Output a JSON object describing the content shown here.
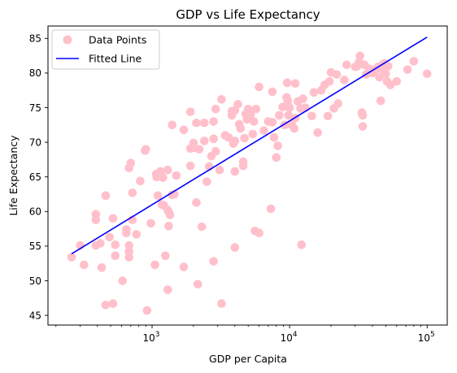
{
  "chart_data": {
    "type": "scatter",
    "title": "GDP vs Life Expectancy",
    "xlabel": "GDP per Capita",
    "ylabel": "Life Expectancy",
    "x_scale": "log",
    "xlim": [
      175,
      140000
    ],
    "ylim": [
      43.6,
      86.8
    ],
    "x_ticks": [
      {
        "value": 1000,
        "base": "10",
        "exp": "3"
      },
      {
        "value": 10000,
        "base": "10",
        "exp": "4"
      },
      {
        "value": 100000,
        "base": "10",
        "exp": "5"
      }
    ],
    "y_ticks": [
      45,
      50,
      55,
      60,
      65,
      70,
      75,
      80,
      85
    ],
    "legend": {
      "position": "top-left",
      "entries": [
        "Data Points",
        "Fitted Line"
      ]
    },
    "colors": {
      "points": "#ffc0cb",
      "line": "#0000ff"
    },
    "series": [
      {
        "name": "Data Points",
        "kind": "scatter",
        "points": [
          [
            260,
            53.4
          ],
          [
            300,
            55.1
          ],
          [
            320,
            52.3
          ],
          [
            390,
            55.1
          ],
          [
            390,
            58.8
          ],
          [
            390,
            59.6
          ],
          [
            420,
            55.4
          ],
          [
            430,
            51.9
          ],
          [
            460,
            46.5
          ],
          [
            460,
            62.3
          ],
          [
            490,
            56.3
          ],
          [
            520,
            46.7
          ],
          [
            520,
            59.0
          ],
          [
            540,
            55.2
          ],
          [
            540,
            53.6
          ],
          [
            610,
            50.0
          ],
          [
            650,
            56.9
          ],
          [
            650,
            57.4
          ],
          [
            680,
            55.1
          ],
          [
            680,
            54.2
          ],
          [
            680,
            53.4
          ],
          [
            680,
            66.3
          ],
          [
            700,
            67.0
          ],
          [
            720,
            62.7
          ],
          [
            720,
            58.8
          ],
          [
            770,
            56.7
          ],
          [
            820,
            64.4
          ],
          [
            890,
            68.8
          ],
          [
            900,
            69.0
          ],
          [
            920,
            45.7
          ],
          [
            980,
            58.3
          ],
          [
            1050,
            52.3
          ],
          [
            1070,
            65.4
          ],
          [
            1080,
            65.0
          ],
          [
            1100,
            62.3
          ],
          [
            1150,
            65.8
          ],
          [
            1180,
            61.0
          ],
          [
            1200,
            64.9
          ],
          [
            1220,
            60.9
          ],
          [
            1250,
            53.6
          ],
          [
            1300,
            48.7
          ],
          [
            1300,
            66.0
          ],
          [
            1300,
            60.2
          ],
          [
            1320,
            57.9
          ],
          [
            1330,
            59.9
          ],
          [
            1350,
            59.5
          ],
          [
            1400,
            62.4
          ],
          [
            1400,
            72.5
          ],
          [
            1450,
            62.5
          ],
          [
            1500,
            65.2
          ],
          [
            1700,
            52.0
          ],
          [
            1700,
            71.8
          ],
          [
            1900,
            74.4
          ],
          [
            1900,
            66.6
          ],
          [
            1900,
            69.1
          ],
          [
            2000,
            69.9
          ],
          [
            2000,
            69.2
          ],
          [
            2100,
            61.3
          ],
          [
            2100,
            72.8
          ],
          [
            2150,
            49.5
          ],
          [
            2200,
            69.0
          ],
          [
            2300,
            57.8
          ],
          [
            2400,
            72.8
          ],
          [
            2400,
            70.2
          ],
          [
            2500,
            64.3
          ],
          [
            2600,
            66.5
          ],
          [
            2700,
            68.0
          ],
          [
            2800,
            70.5
          ],
          [
            2800,
            73.0
          ],
          [
            2800,
            52.8
          ],
          [
            2900,
            74.8
          ],
          [
            2900,
            68.7
          ],
          [
            3100,
            66.0
          ],
          [
            3200,
            76.2
          ],
          [
            3200,
            46.7
          ],
          [
            3400,
            71.0
          ],
          [
            3600,
            70.7
          ],
          [
            3800,
            74.5
          ],
          [
            3800,
            73.9
          ],
          [
            3900,
            69.8
          ],
          [
            4000,
            70.2
          ],
          [
            4000,
            65.8
          ],
          [
            4000,
            74.6
          ],
          [
            4000,
            54.8
          ],
          [
            4200,
            75.5
          ],
          [
            4300,
            72.6
          ],
          [
            4400,
            72.0
          ],
          [
            4600,
            66.6
          ],
          [
            4600,
            67.2
          ],
          [
            4700,
            70.6
          ],
          [
            4800,
            74.1
          ],
          [
            4900,
            73.3
          ],
          [
            5000,
            74.8
          ],
          [
            5200,
            74.0
          ],
          [
            5400,
            71.2
          ],
          [
            5500,
            73.0
          ],
          [
            5600,
            57.2
          ],
          [
            5700,
            74.8
          ],
          [
            6000,
            56.9
          ],
          [
            6000,
            78.0
          ],
          [
            6500,
            71.7
          ],
          [
            7000,
            73.0
          ],
          [
            7300,
            60.4
          ],
          [
            7500,
            72.9
          ],
          [
            7500,
            77.3
          ],
          [
            7700,
            70.7
          ],
          [
            8000,
            67.8
          ],
          [
            8200,
            69.5
          ],
          [
            8400,
            73.9
          ],
          [
            8900,
            75.1
          ],
          [
            9200,
            72.5
          ],
          [
            9500,
            76.5
          ],
          [
            9600,
            78.6
          ],
          [
            9700,
            76.0
          ],
          [
            9800,
            73.9
          ],
          [
            10000,
            75.0
          ],
          [
            10400,
            72.5
          ],
          [
            10800,
            72.0
          ],
          [
            11000,
            73.5
          ],
          [
            11000,
            78.5
          ],
          [
            11500,
            75.9
          ],
          [
            12000,
            74.9
          ],
          [
            12200,
            55.2
          ],
          [
            12500,
            76.3
          ],
          [
            13000,
            75.0
          ],
          [
            14500,
            73.8
          ],
          [
            15000,
            77.2
          ],
          [
            16000,
            71.4
          ],
          [
            17000,
            77.5
          ],
          [
            18000,
            78.3
          ],
          [
            19000,
            73.8
          ],
          [
            19500,
            78.8
          ],
          [
            20000,
            80.1
          ],
          [
            21000,
            74.9
          ],
          [
            22000,
            79.8
          ],
          [
            22500,
            75.6
          ],
          [
            25000,
            79.0
          ],
          [
            26000,
            81.2
          ],
          [
            30000,
            80.9
          ],
          [
            31000,
            81.0
          ],
          [
            32000,
            81.6
          ],
          [
            32500,
            82.5
          ],
          [
            33500,
            74.3
          ],
          [
            34000,
            73.9
          ],
          [
            34000,
            72.3
          ],
          [
            35000,
            81.2
          ],
          [
            36000,
            79.8
          ],
          [
            38000,
            80.6
          ],
          [
            40000,
            80.0
          ],
          [
            42000,
            80.5
          ],
          [
            44000,
            80.9
          ],
          [
            45000,
            79.4
          ],
          [
            46000,
            76.0
          ],
          [
            48000,
            81.3
          ],
          [
            48000,
            80.2
          ],
          [
            49000,
            81.4
          ],
          [
            50000,
            79.9
          ],
          [
            51000,
            78.8
          ],
          [
            52000,
            81.0
          ],
          [
            54000,
            78.3
          ],
          [
            60000,
            78.8
          ],
          [
            72000,
            80.5
          ],
          [
            80000,
            81.7
          ],
          [
            100000,
            79.9
          ]
        ]
      },
      {
        "name": "Fitted Line",
        "kind": "line",
        "points": [
          [
            260,
            53.9
          ],
          [
            100000,
            85.2
          ]
        ]
      }
    ]
  }
}
